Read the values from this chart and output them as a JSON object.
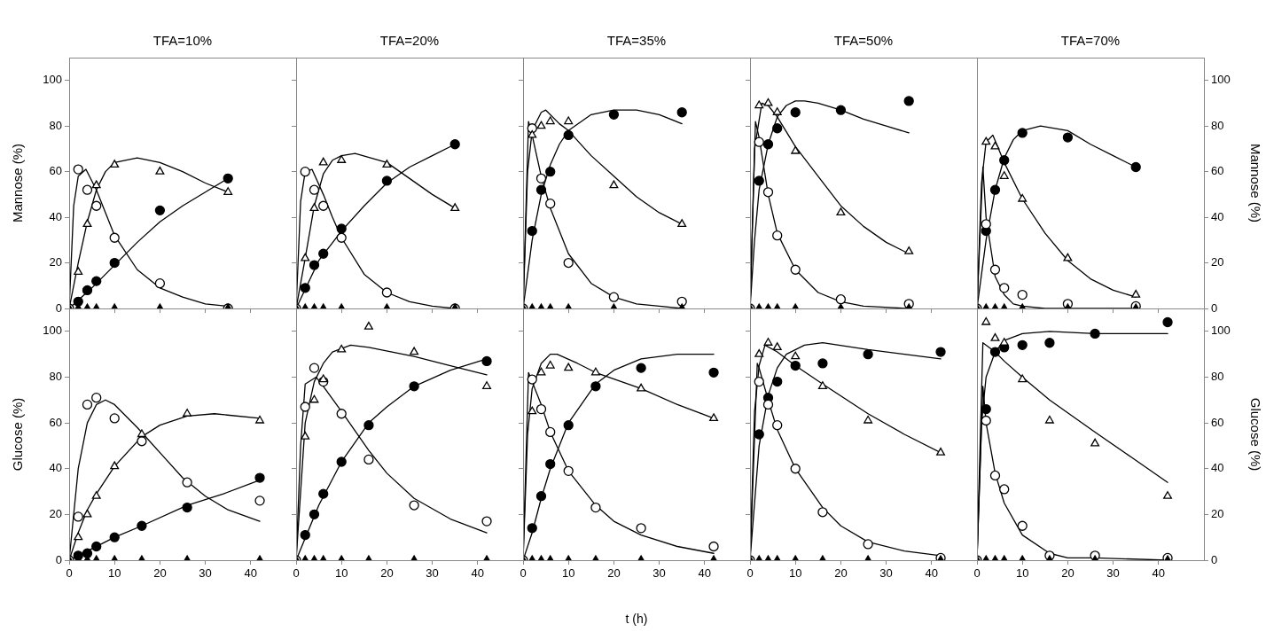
{
  "chart_data": [
    {
      "type": "scatter",
      "title": "TFA=10%",
      "ylabel": "Mannose (%)",
      "x": [
        0,
        2,
        4,
        6,
        10,
        20,
        35
      ],
      "xlim": [
        0,
        50
      ],
      "xticks": [
        0,
        10,
        20,
        30,
        40
      ],
      "ylim": [
        0,
        110
      ],
      "yticks": [
        0,
        20,
        40,
        60,
        80,
        100
      ],
      "tick_labels": "y",
      "series": [
        {
          "color": "#000000",
          "marker": "circle",
          "values": [
            null,
            3,
            8,
            12,
            20,
            43,
            57
          ]
        },
        {
          "color": "#ffffff",
          "marker": "circle",
          "values": [
            0,
            61,
            52,
            45,
            31,
            11,
            0
          ]
        },
        {
          "color": "#ffffff",
          "marker": "triangle",
          "values": [
            null,
            16,
            37,
            54,
            63,
            60,
            51
          ]
        },
        {
          "color": "#000000",
          "marker": "triangle",
          "values": [
            0,
            0,
            0,
            0,
            0,
            0,
            0
          ]
        },
        {
          "type": "line",
          "color": "#000000",
          "marker": "none",
          "x": [
            0,
            5,
            10,
            15,
            20,
            25,
            30,
            35
          ],
          "values": [
            0,
            9,
            19,
            29,
            38,
            45,
            51,
            57
          ]
        },
        {
          "type": "line",
          "color": "#000000",
          "marker": "none",
          "x": [
            0,
            1,
            2,
            3.7,
            6,
            10,
            15,
            20,
            25,
            30,
            35
          ],
          "values": [
            0,
            45,
            58,
            61,
            52,
            32,
            17,
            9,
            5,
            2,
            1
          ]
        },
        {
          "type": "line",
          "color": "#000000",
          "marker": "none",
          "x": [
            0,
            2,
            4,
            6,
            8,
            10,
            15,
            20,
            25,
            30,
            35
          ],
          "values": [
            0,
            20,
            38,
            52,
            60,
            64,
            66,
            64,
            60,
            55,
            51
          ]
        }
      ]
    },
    {
      "type": "scatter",
      "title": "TFA=20%",
      "x": [
        0,
        2,
        4,
        6,
        10,
        20,
        35
      ],
      "xlim": [
        0,
        50
      ],
      "xticks": [
        0,
        10,
        20,
        30,
        40
      ],
      "ylim": [
        0,
        110
      ],
      "yticks": [
        0,
        20,
        40,
        60,
        80,
        100
      ],
      "tick_labels": false,
      "series": [
        {
          "color": "#000000",
          "marker": "circle",
          "values": [
            null,
            9,
            19,
            24,
            35,
            56,
            72
          ]
        },
        {
          "color": "#ffffff",
          "marker": "circle",
          "values": [
            0,
            60,
            52,
            45,
            31,
            7,
            0
          ]
        },
        {
          "color": "#ffffff",
          "marker": "triangle",
          "values": [
            null,
            22,
            44,
            64,
            65,
            63,
            44
          ]
        },
        {
          "color": "#000000",
          "marker": "triangle",
          "values": [
            0,
            0,
            0,
            0,
            0,
            0,
            0
          ]
        },
        {
          "type": "line",
          "color": "#000000",
          "marker": "none",
          "x": [
            0,
            5,
            10,
            15,
            20,
            25,
            30,
            35
          ],
          "values": [
            0,
            21,
            34,
            45,
            55,
            62,
            67,
            72
          ]
        },
        {
          "type": "line",
          "color": "#000000",
          "marker": "none",
          "x": [
            0,
            1,
            2,
            3.5,
            6,
            8,
            10,
            15,
            20,
            25,
            30,
            35
          ],
          "values": [
            0,
            47,
            60,
            61,
            50,
            40,
            31,
            15,
            7,
            3,
            1,
            0
          ]
        },
        {
          "type": "line",
          "color": "#000000",
          "marker": "none",
          "x": [
            0,
            2,
            4,
            6,
            8,
            10,
            13,
            20,
            25,
            30,
            35
          ],
          "values": [
            0,
            22,
            45,
            59,
            65,
            67,
            68,
            64,
            57,
            50,
            44
          ]
        }
      ]
    },
    {
      "type": "scatter",
      "title": "TFA=35%",
      "x": [
        0,
        2,
        4,
        6,
        10,
        20,
        35
      ],
      "xlim": [
        0,
        50
      ],
      "xticks": [
        0,
        10,
        20,
        30,
        40
      ],
      "ylim": [
        0,
        110
      ],
      "yticks": [
        0,
        20,
        40,
        60,
        80,
        100
      ],
      "tick_labels": false,
      "series": [
        {
          "color": "#000000",
          "marker": "circle",
          "values": [
            null,
            34,
            52,
            60,
            76,
            85,
            86
          ]
        },
        {
          "color": "#ffffff",
          "marker": "circle",
          "values": [
            0,
            79,
            57,
            46,
            20,
            5,
            3
          ]
        },
        {
          "color": "#ffffff",
          "marker": "triangle",
          "values": [
            null,
            76,
            80,
            82,
            82,
            54,
            37
          ]
        },
        {
          "color": "#000000",
          "marker": "triangle",
          "values": [
            0,
            0,
            0,
            0,
            0,
            0,
            0
          ]
        },
        {
          "type": "line",
          "color": "#000000",
          "marker": "none",
          "x": [
            0,
            2,
            4,
            6,
            8,
            10,
            15,
            20,
            25,
            30,
            35
          ],
          "values": [
            0,
            30,
            50,
            63,
            72,
            78,
            85,
            87,
            87,
            85,
            81
          ]
        },
        {
          "type": "line",
          "color": "#000000",
          "marker": "none",
          "x": [
            0,
            1.2,
            2,
            4,
            6,
            10,
            15,
            20,
            25,
            30,
            35
          ],
          "values": [
            0,
            82,
            76,
            58,
            44,
            24,
            11,
            5,
            2,
            1,
            0
          ]
        },
        {
          "type": "line",
          "color": "#000000",
          "marker": "none",
          "x": [
            0,
            1,
            2,
            4,
            5,
            8,
            10,
            15,
            20,
            25,
            30,
            35
          ],
          "values": [
            0,
            60,
            78,
            86,
            87,
            81,
            78,
            67,
            58,
            49,
            42,
            37
          ]
        }
      ]
    },
    {
      "type": "scatter",
      "title": "TFA=50%",
      "x": [
        0,
        2,
        4,
        6,
        10,
        20,
        35
      ],
      "xlim": [
        0,
        50
      ],
      "xticks": [
        0,
        10,
        20,
        30,
        40
      ],
      "ylim": [
        0,
        110
      ],
      "yticks": [
        0,
        20,
        40,
        60,
        80,
        100
      ],
      "tick_labels": false,
      "series": [
        {
          "color": "#000000",
          "marker": "circle",
          "values": [
            null,
            56,
            72,
            79,
            86,
            87,
            91
          ]
        },
        {
          "color": "#ffffff",
          "marker": "circle",
          "values": [
            0,
            73,
            51,
            32,
            17,
            4,
            2
          ]
        },
        {
          "color": "#ffffff",
          "marker": "triangle",
          "values": [
            null,
            89,
            90,
            86,
            69,
            42,
            25
          ]
        },
        {
          "color": "#000000",
          "marker": "triangle",
          "values": [
            0,
            0,
            0,
            0,
            0,
            0,
            0
          ]
        },
        {
          "type": "line",
          "color": "#000000",
          "marker": "none",
          "x": [
            0,
            1,
            2,
            4,
            6,
            8,
            10,
            12,
            15,
            20,
            25,
            30,
            35
          ],
          "values": [
            0,
            30,
            52,
            72,
            84,
            89,
            91,
            91,
            90,
            87,
            83,
            80,
            77
          ]
        },
        {
          "type": "line",
          "color": "#000000",
          "marker": "none",
          "x": [
            0,
            1.2,
            2,
            4,
            6,
            10,
            15,
            20,
            25,
            35
          ],
          "values": [
            0,
            82,
            75,
            50,
            33,
            17,
            7,
            3,
            1,
            0
          ]
        },
        {
          "type": "line",
          "color": "#000000",
          "marker": "none",
          "x": [
            0,
            1,
            2.6,
            4,
            6,
            10,
            15,
            20,
            25,
            30,
            35
          ],
          "values": [
            0,
            70,
            90,
            89,
            84,
            71,
            58,
            45,
            36,
            29,
            24
          ]
        }
      ]
    },
    {
      "type": "scatter",
      "title": "TFA=70%",
      "ylabel": "Mannose (%)",
      "x": [
        0,
        2,
        4,
        6,
        10,
        20,
        35
      ],
      "xlim": [
        0,
        50
      ],
      "xticks": [
        0,
        10,
        20,
        30,
        40
      ],
      "ylim": [
        0,
        110
      ],
      "yticks": [
        0,
        20,
        40,
        60,
        80,
        100
      ],
      "tick_labels": "y",
      "series": [
        {
          "color": "#000000",
          "marker": "circle",
          "values": [
            null,
            34,
            52,
            65,
            77,
            75,
            62
          ]
        },
        {
          "color": "#ffffff",
          "marker": "circle",
          "values": [
            0,
            37,
            17,
            9,
            6,
            2,
            1
          ]
        },
        {
          "color": "#ffffff",
          "marker": "triangle",
          "values": [
            null,
            73,
            71,
            58,
            48,
            22,
            6
          ]
        },
        {
          "color": "#000000",
          "marker": "triangle",
          "values": [
            0,
            0,
            0,
            0,
            0,
            0,
            0
          ]
        },
        {
          "type": "line",
          "color": "#000000",
          "marker": "none",
          "x": [
            0,
            2,
            4,
            6,
            8,
            10,
            14,
            20,
            25,
            30,
            35
          ],
          "values": [
            0,
            30,
            52,
            66,
            74,
            78,
            80,
            78,
            72,
            67,
            62
          ]
        },
        {
          "type": "line",
          "color": "#000000",
          "marker": "none",
          "x": [
            0,
            1.3,
            2,
            4,
            6,
            8,
            10,
            15,
            35
          ],
          "values": [
            0,
            62,
            40,
            14,
            6,
            2,
            1,
            0,
            0
          ]
        },
        {
          "type": "line",
          "color": "#000000",
          "marker": "none",
          "x": [
            0,
            1,
            2,
            3.5,
            6,
            10,
            15,
            20,
            25,
            30,
            35
          ],
          "values": [
            0,
            55,
            73,
            76,
            64,
            48,
            33,
            21,
            13,
            8,
            5
          ]
        }
      ]
    },
    {
      "type": "scatter",
      "ylabel": "Glucose (%)",
      "x": [
        0,
        2,
        4,
        6,
        10,
        16,
        26,
        42
      ],
      "xlim": [
        0,
        50
      ],
      "xticks": [
        0,
        10,
        20,
        30,
        40
      ],
      "ylim": [
        0,
        110
      ],
      "yticks": [
        0,
        20,
        40,
        60,
        80,
        100
      ],
      "series": [
        {
          "color": "#000000",
          "marker": "circle",
          "values": [
            null,
            2,
            3,
            6,
            10,
            15,
            23,
            36
          ]
        },
        {
          "color": "#ffffff",
          "marker": "circle",
          "values": [
            0,
            19,
            68,
            71,
            62,
            52,
            34,
            26
          ]
        },
        {
          "color": "#ffffff",
          "marker": "triangle",
          "values": [
            null,
            10,
            20,
            28,
            41,
            55,
            64,
            61
          ]
        },
        {
          "color": "#000000",
          "marker": "triangle",
          "values": [
            0,
            0,
            0,
            0,
            0,
            0,
            0,
            0
          ]
        },
        {
          "type": "line",
          "color": "#000000",
          "marker": "none",
          "x": [
            0,
            5,
            10,
            16,
            26,
            34,
            42
          ],
          "values": [
            0,
            5,
            10,
            15,
            24,
            29,
            35
          ]
        },
        {
          "type": "line",
          "color": "#000000",
          "marker": "none",
          "x": [
            0,
            2,
            4,
            6,
            8,
            10,
            15,
            20,
            25,
            30,
            35,
            42
          ],
          "values": [
            0,
            40,
            60,
            68,
            70,
            68,
            58,
            47,
            36,
            28,
            22,
            17
          ]
        },
        {
          "type": "line",
          "color": "#000000",
          "marker": "none",
          "x": [
            0,
            2,
            4,
            6,
            10,
            16,
            20,
            26,
            32,
            42
          ],
          "values": [
            0,
            12,
            22,
            29,
            41,
            54,
            59,
            63,
            64,
            62
          ]
        }
      ]
    },
    {
      "type": "scatter",
      "x": [
        0,
        2,
        4,
        6,
        10,
        16,
        26,
        42
      ],
      "xlim": [
        0,
        50
      ],
      "xticks": [
        0,
        10,
        20,
        30,
        40
      ],
      "ylim": [
        0,
        110
      ],
      "yticks": [
        0,
        20,
        40,
        60,
        80,
        100
      ],
      "tick_labels": "x",
      "series": [
        {
          "color": "#000000",
          "marker": "circle",
          "values": [
            null,
            11,
            20,
            29,
            43,
            59,
            76,
            87
          ]
        },
        {
          "color": "#ffffff",
          "marker": "circle",
          "values": [
            0,
            67,
            84,
            78,
            64,
            44,
            24,
            17
          ]
        },
        {
          "color": "#ffffff",
          "marker": "triangle",
          "values": [
            null,
            54,
            70,
            79,
            92,
            102,
            91,
            76
          ]
        },
        {
          "color": "#000000",
          "marker": "triangle",
          "values": [
            0,
            0,
            0,
            0,
            0,
            0,
            0,
            0
          ]
        },
        {
          "type": "line",
          "color": "#000000",
          "marker": "none",
          "x": [
            0,
            5,
            10,
            16,
            20,
            26,
            34,
            42
          ],
          "values": [
            0,
            24,
            43,
            60,
            67,
            76,
            83,
            88
          ]
        },
        {
          "type": "line",
          "color": "#000000",
          "marker": "none",
          "x": [
            0,
            1,
            2,
            4.4,
            6,
            10,
            16,
            20,
            26,
            34,
            42
          ],
          "values": [
            0,
            50,
            77,
            80,
            76,
            65,
            48,
            38,
            27,
            18,
            12
          ]
        },
        {
          "type": "line",
          "color": "#000000",
          "marker": "none",
          "x": [
            0,
            2,
            4,
            6,
            8,
            12,
            16,
            26,
            34,
            42
          ],
          "values": [
            0,
            60,
            78,
            86,
            91,
            94,
            93,
            89,
            85,
            81
          ]
        }
      ]
    },
    {
      "type": "scatter",
      "xlabel": "t (h)",
      "x": [
        0,
        2,
        4,
        6,
        10,
        16,
        26,
        42
      ],
      "xlim": [
        0,
        50
      ],
      "xticks": [
        0,
        10,
        20,
        30,
        40
      ],
      "ylim": [
        0,
        110
      ],
      "yticks": [
        0,
        20,
        40,
        60,
        80,
        100
      ],
      "tick_labels": "x",
      "series": [
        {
          "color": "#000000",
          "marker": "circle",
          "values": [
            null,
            14,
            28,
            42,
            59,
            76,
            84,
            82
          ]
        },
        {
          "color": "#ffffff",
          "marker": "circle",
          "values": [
            0,
            79,
            66,
            56,
            39,
            23,
            14,
            6
          ]
        },
        {
          "color": "#ffffff",
          "marker": "triangle",
          "values": [
            null,
            65,
            82,
            85,
            84,
            82,
            75,
            62
          ]
        },
        {
          "color": "#000000",
          "marker": "triangle",
          "values": [
            0,
            0,
            0,
            0,
            0,
            0,
            0,
            0
          ]
        },
        {
          "type": "line",
          "color": "#000000",
          "marker": "none",
          "x": [
            0,
            2,
            4,
            6,
            10,
            16,
            20,
            26,
            34,
            42
          ],
          "values": [
            0,
            12,
            27,
            40,
            60,
            77,
            83,
            88,
            90,
            90
          ]
        },
        {
          "type": "line",
          "color": "#000000",
          "marker": "none",
          "x": [
            0,
            1.2,
            2,
            4,
            6,
            10,
            16,
            20,
            26,
            34,
            42
          ],
          "values": [
            0,
            82,
            78,
            68,
            56,
            39,
            24,
            17,
            11,
            6,
            3
          ]
        },
        {
          "type": "line",
          "color": "#000000",
          "marker": "none",
          "x": [
            0,
            1,
            2,
            4,
            6,
            7.5,
            12,
            16,
            26,
            34,
            42
          ],
          "values": [
            0,
            55,
            75,
            86,
            90,
            90,
            86,
            82,
            75,
            68,
            62
          ]
        }
      ]
    },
    {
      "type": "scatter",
      "x": [
        0,
        2,
        4,
        6,
        10,
        16,
        26,
        42
      ],
      "xlim": [
        0,
        50
      ],
      "xticks": [
        0,
        10,
        20,
        30,
        40
      ],
      "ylim": [
        0,
        110
      ],
      "yticks": [
        0,
        20,
        40,
        60,
        80,
        100
      ],
      "tick_labels": "x",
      "series": [
        {
          "color": "#000000",
          "marker": "circle",
          "values": [
            null,
            55,
            71,
            78,
            85,
            86,
            90,
            91
          ]
        },
        {
          "color": "#ffffff",
          "marker": "circle",
          "values": [
            0,
            78,
            68,
            59,
            40,
            21,
            7,
            1
          ]
        },
        {
          "color": "#ffffff",
          "marker": "triangle",
          "values": [
            null,
            90,
            95,
            93,
            89,
            76,
            61,
            47
          ]
        },
        {
          "color": "#000000",
          "marker": "triangle",
          "values": [
            0,
            0,
            0,
            0,
            0,
            0,
            0,
            0
          ]
        },
        {
          "type": "line",
          "color": "#000000",
          "marker": "none",
          "x": [
            0,
            2,
            4,
            6,
            8,
            12,
            16,
            26,
            34,
            42
          ],
          "values": [
            0,
            50,
            72,
            84,
            90,
            94,
            95,
            92,
            90,
            88
          ]
        },
        {
          "type": "line",
          "color": "#000000",
          "marker": "none",
          "x": [
            0,
            1.6,
            2,
            4,
            6,
            10,
            16,
            20,
            26,
            34,
            42
          ],
          "values": [
            0,
            86,
            84,
            70,
            57,
            40,
            23,
            15,
            8,
            4,
            2
          ]
        },
        {
          "type": "line",
          "color": "#000000",
          "marker": "none",
          "x": [
            0,
            1,
            2,
            3.3,
            6,
            10,
            16,
            26,
            34,
            42
          ],
          "values": [
            0,
            65,
            85,
            94,
            91,
            85,
            77,
            64,
            55,
            47
          ]
        }
      ]
    },
    {
      "type": "scatter",
      "ylabel": "Glucose (%)",
      "x": [
        0,
        2,
        4,
        6,
        10,
        16,
        26,
        42
      ],
      "xlim": [
        0,
        50
      ],
      "xticks": [
        0,
        10,
        20,
        30,
        40
      ],
      "ylim": [
        0,
        110
      ],
      "yticks": [
        0,
        20,
        40,
        60,
        80,
        100
      ],
      "series": [
        {
          "color": "#000000",
          "marker": "circle",
          "values": [
            null,
            66,
            91,
            93,
            94,
            95,
            99,
            104
          ]
        },
        {
          "color": "#ffffff",
          "marker": "circle",
          "values": [
            0,
            61,
            37,
            31,
            15,
            2,
            2,
            1
          ]
        },
        {
          "color": "#ffffff",
          "marker": "triangle",
          "values": [
            null,
            104,
            97,
            95,
            79,
            61,
            51,
            28
          ]
        },
        {
          "color": "#000000",
          "marker": "triangle",
          "values": [
            0,
            0,
            0,
            0,
            0,
            0,
            0,
            0
          ]
        },
        {
          "type": "line",
          "color": "#000000",
          "marker": "none",
          "x": [
            0,
            1,
            2,
            4,
            6,
            10,
            16,
            26,
            42
          ],
          "values": [
            0,
            60,
            80,
            91,
            96,
            99,
            100,
            99,
            99
          ]
        },
        {
          "type": "line",
          "color": "#000000",
          "marker": "none",
          "x": [
            0,
            1.3,
            2,
            4,
            6,
            10,
            16,
            20,
            26,
            42
          ],
          "values": [
            0,
            76,
            60,
            38,
            25,
            11,
            3,
            1,
            1,
            0
          ]
        },
        {
          "type": "line",
          "color": "#000000",
          "marker": "none",
          "x": [
            0,
            1.3,
            4,
            6,
            10,
            16,
            26,
            34,
            42
          ],
          "values": [
            0,
            95,
            91,
            87,
            80,
            70,
            56,
            45,
            34
          ]
        }
      ]
    }
  ]
}
